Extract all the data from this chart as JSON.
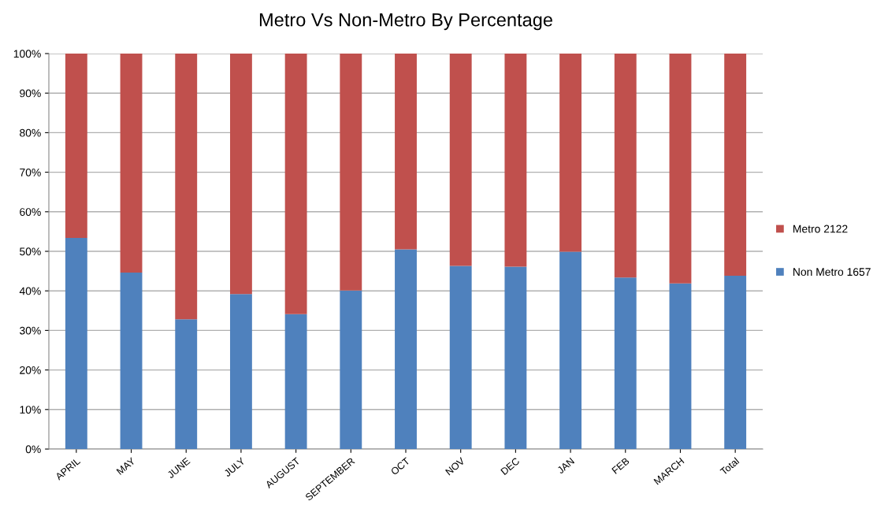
{
  "chart_data": {
    "type": "bar",
    "title": "Metro Vs Non-Metro By Percentage",
    "categories": [
      "APRIL",
      "MAY",
      "JUNE",
      "JULY",
      "AUGUST",
      "SEPTEMBER",
      "OCT",
      "NOV",
      "DEC",
      "JAN",
      "FEB",
      "MARCH",
      "Total"
    ],
    "stacked": true,
    "series": [
      {
        "name": "Non Metro 1657",
        "color": "#4f81bd",
        "values": [
          53.4,
          44.6,
          32.8,
          39.2,
          34.1,
          40.1,
          50.5,
          46.3,
          46.1,
          49.9,
          43.4,
          41.9,
          43.8
        ]
      },
      {
        "name": "Metro 2122",
        "color": "#c0504d",
        "values": [
          46.6,
          55.4,
          67.2,
          60.8,
          65.9,
          59.9,
          49.5,
          53.7,
          53.9,
          50.1,
          56.6,
          58.1,
          56.2
        ]
      }
    ],
    "ylim": [
      0,
      100
    ],
    "yticks": [
      {
        "value": 0,
        "label": "0%"
      },
      {
        "value": 10,
        "label": "10%"
      },
      {
        "value": 20,
        "label": "20%"
      },
      {
        "value": 30,
        "label": "30%"
      },
      {
        "value": 40,
        "label": "40%"
      },
      {
        "value": 50,
        "label": "50%"
      },
      {
        "value": 60,
        "label": "60%"
      },
      {
        "value": 70,
        "label": "70%"
      },
      {
        "value": 80,
        "label": "80%"
      },
      {
        "value": 90,
        "label": "90%"
      },
      {
        "value": 100,
        "label": "100%"
      }
    ],
    "grid": "y",
    "legend": "right"
  }
}
